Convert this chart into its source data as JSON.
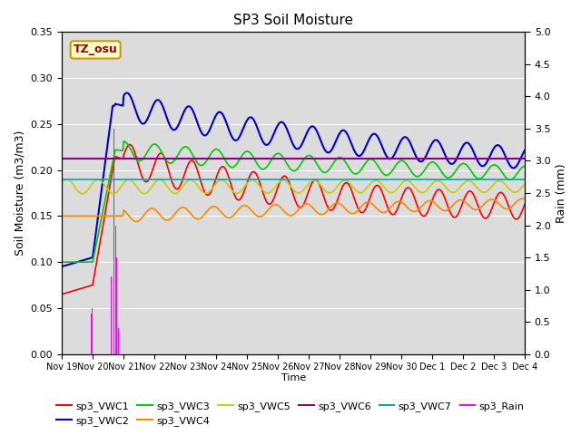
{
  "title": "SP3 Soil Moisture",
  "ylabel_left": "Soil Moisture (m3/m3)",
  "ylabel_right": "Rain (mm)",
  "xlabel": "Time",
  "annotation": "TZ_osu",
  "x_tick_labels": [
    "Nov 19",
    "Nov 20",
    "Nov 21",
    "Nov 22",
    "Nov 23",
    "Nov 24",
    "Nov 25",
    "Nov 26",
    "Nov 27",
    "Nov 28",
    "Nov 29",
    "Nov 30",
    "Dec 1",
    "Dec 2",
    "Dec 3",
    "Dec 4"
  ],
  "ylim_left": [
    0.0,
    0.35
  ],
  "ylim_right": [
    0.0,
    5.0
  ],
  "yticks_left": [
    0.0,
    0.05,
    0.1,
    0.15,
    0.2,
    0.25,
    0.3,
    0.35
  ],
  "yticks_right": [
    0.0,
    0.5,
    1.0,
    1.5,
    2.0,
    2.5,
    3.0,
    3.5,
    4.0,
    4.5,
    5.0
  ],
  "plot_bg_color": "#dcdcdc",
  "fig_bg_color": "#ffffff",
  "grid_color": "#ffffff",
  "series_colors": {
    "sp3_VWC1": "#ff0000",
    "sp3_VWC2": "#0000cc",
    "sp3_VWC3": "#00cc00",
    "sp3_VWC4": "#ff8800",
    "sp3_VWC5": "#cccc00",
    "sp3_VWC6": "#880088",
    "sp3_VWC7": "#00aaaa",
    "sp3_Rain": "#ff00ff"
  }
}
